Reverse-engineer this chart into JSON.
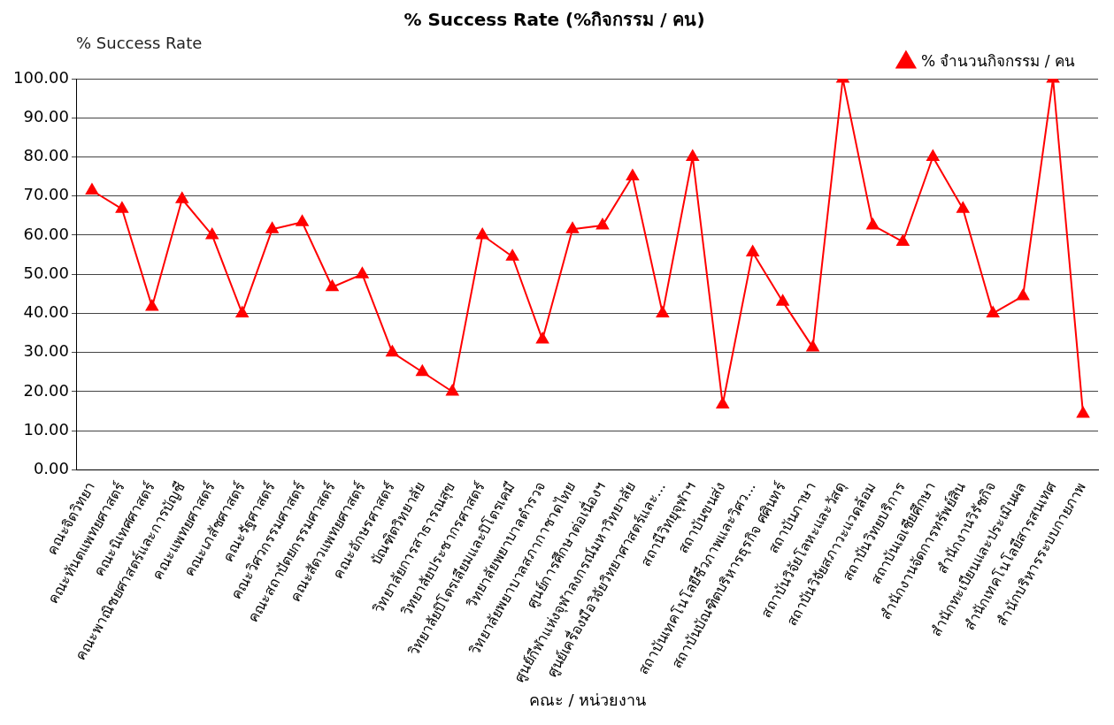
{
  "chart_data": {
    "type": "line",
    "title": "% Success Rate (%กิจกรรม / คน)",
    "ylabel": "% Success Rate",
    "xlabel": "คณะ / หน่วยงาน",
    "categories": [
      "คณะจิตวิทยา",
      "คณะทันตแพทยศาสตร์",
      "คณะนิเทศศาสตร์",
      "คณะพาณิชยศาสตร์และการบัญชี",
      "คณะแพทยศาสตร์",
      "คณะเภสัชศาสตร์",
      "คณะรัฐศาสตร์",
      "คณะวิศวกรรมศาสตร์",
      "คณะสถาปัตยกรรมศาสตร์",
      "คณะสัตวแพทยศาสตร์",
      "คณะอักษรศาสตร์",
      "บัณฑิตวิทยาลัย",
      "วิทยาลัยการสาธารณสุข",
      "วิทยาลัยประชากรศาสตร์",
      "วิทยาลัยปิโตรเลียมและปิโตรเคมี",
      "วิทยาลัยพยาบาลตำรวจ",
      "วิทยาลัยพยาบาลสภากาชาดไทย",
      "ศูนย์การศึกษาต่อเนื่องฯ",
      "ศูนย์กีฬาแห่งจุฬาลงกรณ์มหาวิทยาลัย",
      "ศูนย์เครื่องมือวิจัยวิทยาศาสตร์และ...",
      "สถานีวิทยุจุฬาฯ",
      "สถาบันขนส่ง",
      "สถาบันเทคโนโลยีชีวภาพและวิศว...",
      "สถาบันบัณฑิตบริหารธุรกิจ ศศินทร์",
      "สถาบันภาษา",
      "สถาบันวิจัยโลหะและวัสดุ",
      "สถาบันวิจัยสภาวะแวดล้อม",
      "สถาบันวิทยบริการ",
      "สถาบันเอเชียศึกษา",
      "สำนักงานจัดการทรัพย์สิน",
      "สำนักงานวิรัชกิจ",
      "สำนักทะเบียนและประเมินผล",
      "สำนักเทคโนโลยีสารสนเทศ",
      "สำนักบริหารระบบกายภาพ"
    ],
    "series": [
      {
        "name": "% จำนวนกิจกรรม / คน",
        "color": "#ff0000",
        "values": [
          71.4,
          66.7,
          41.7,
          69.2,
          60,
          40,
          61.5,
          63.3,
          46.7,
          50,
          30,
          25,
          20,
          60,
          54.5,
          33.3,
          61.5,
          62.5,
          75,
          40,
          80,
          16.7,
          55.6,
          43,
          31.3,
          100,
          62.5,
          58.3,
          80,
          66.7,
          40,
          44.4,
          100,
          14.3
        ]
      }
    ],
    "ylim": [
      0,
      100
    ],
    "yticks": [
      {
        "value": 0,
        "label": "0.00"
      },
      {
        "value": 10,
        "label": "10.00"
      },
      {
        "value": 20,
        "label": "20.00"
      },
      {
        "value": 30,
        "label": "30.00"
      },
      {
        "value": 40,
        "label": "40.00"
      },
      {
        "value": 50,
        "label": "50.00"
      },
      {
        "value": 60,
        "label": "60.00"
      },
      {
        "value": 70,
        "label": "70.00"
      },
      {
        "value": 80,
        "label": "80.00"
      },
      {
        "value": 90,
        "label": "90.00"
      },
      {
        "value": 100,
        "label": "100.00"
      }
    ],
    "grid": "y",
    "legend": "top right",
    "marker": "triangle",
    "line_style": "solid"
  }
}
